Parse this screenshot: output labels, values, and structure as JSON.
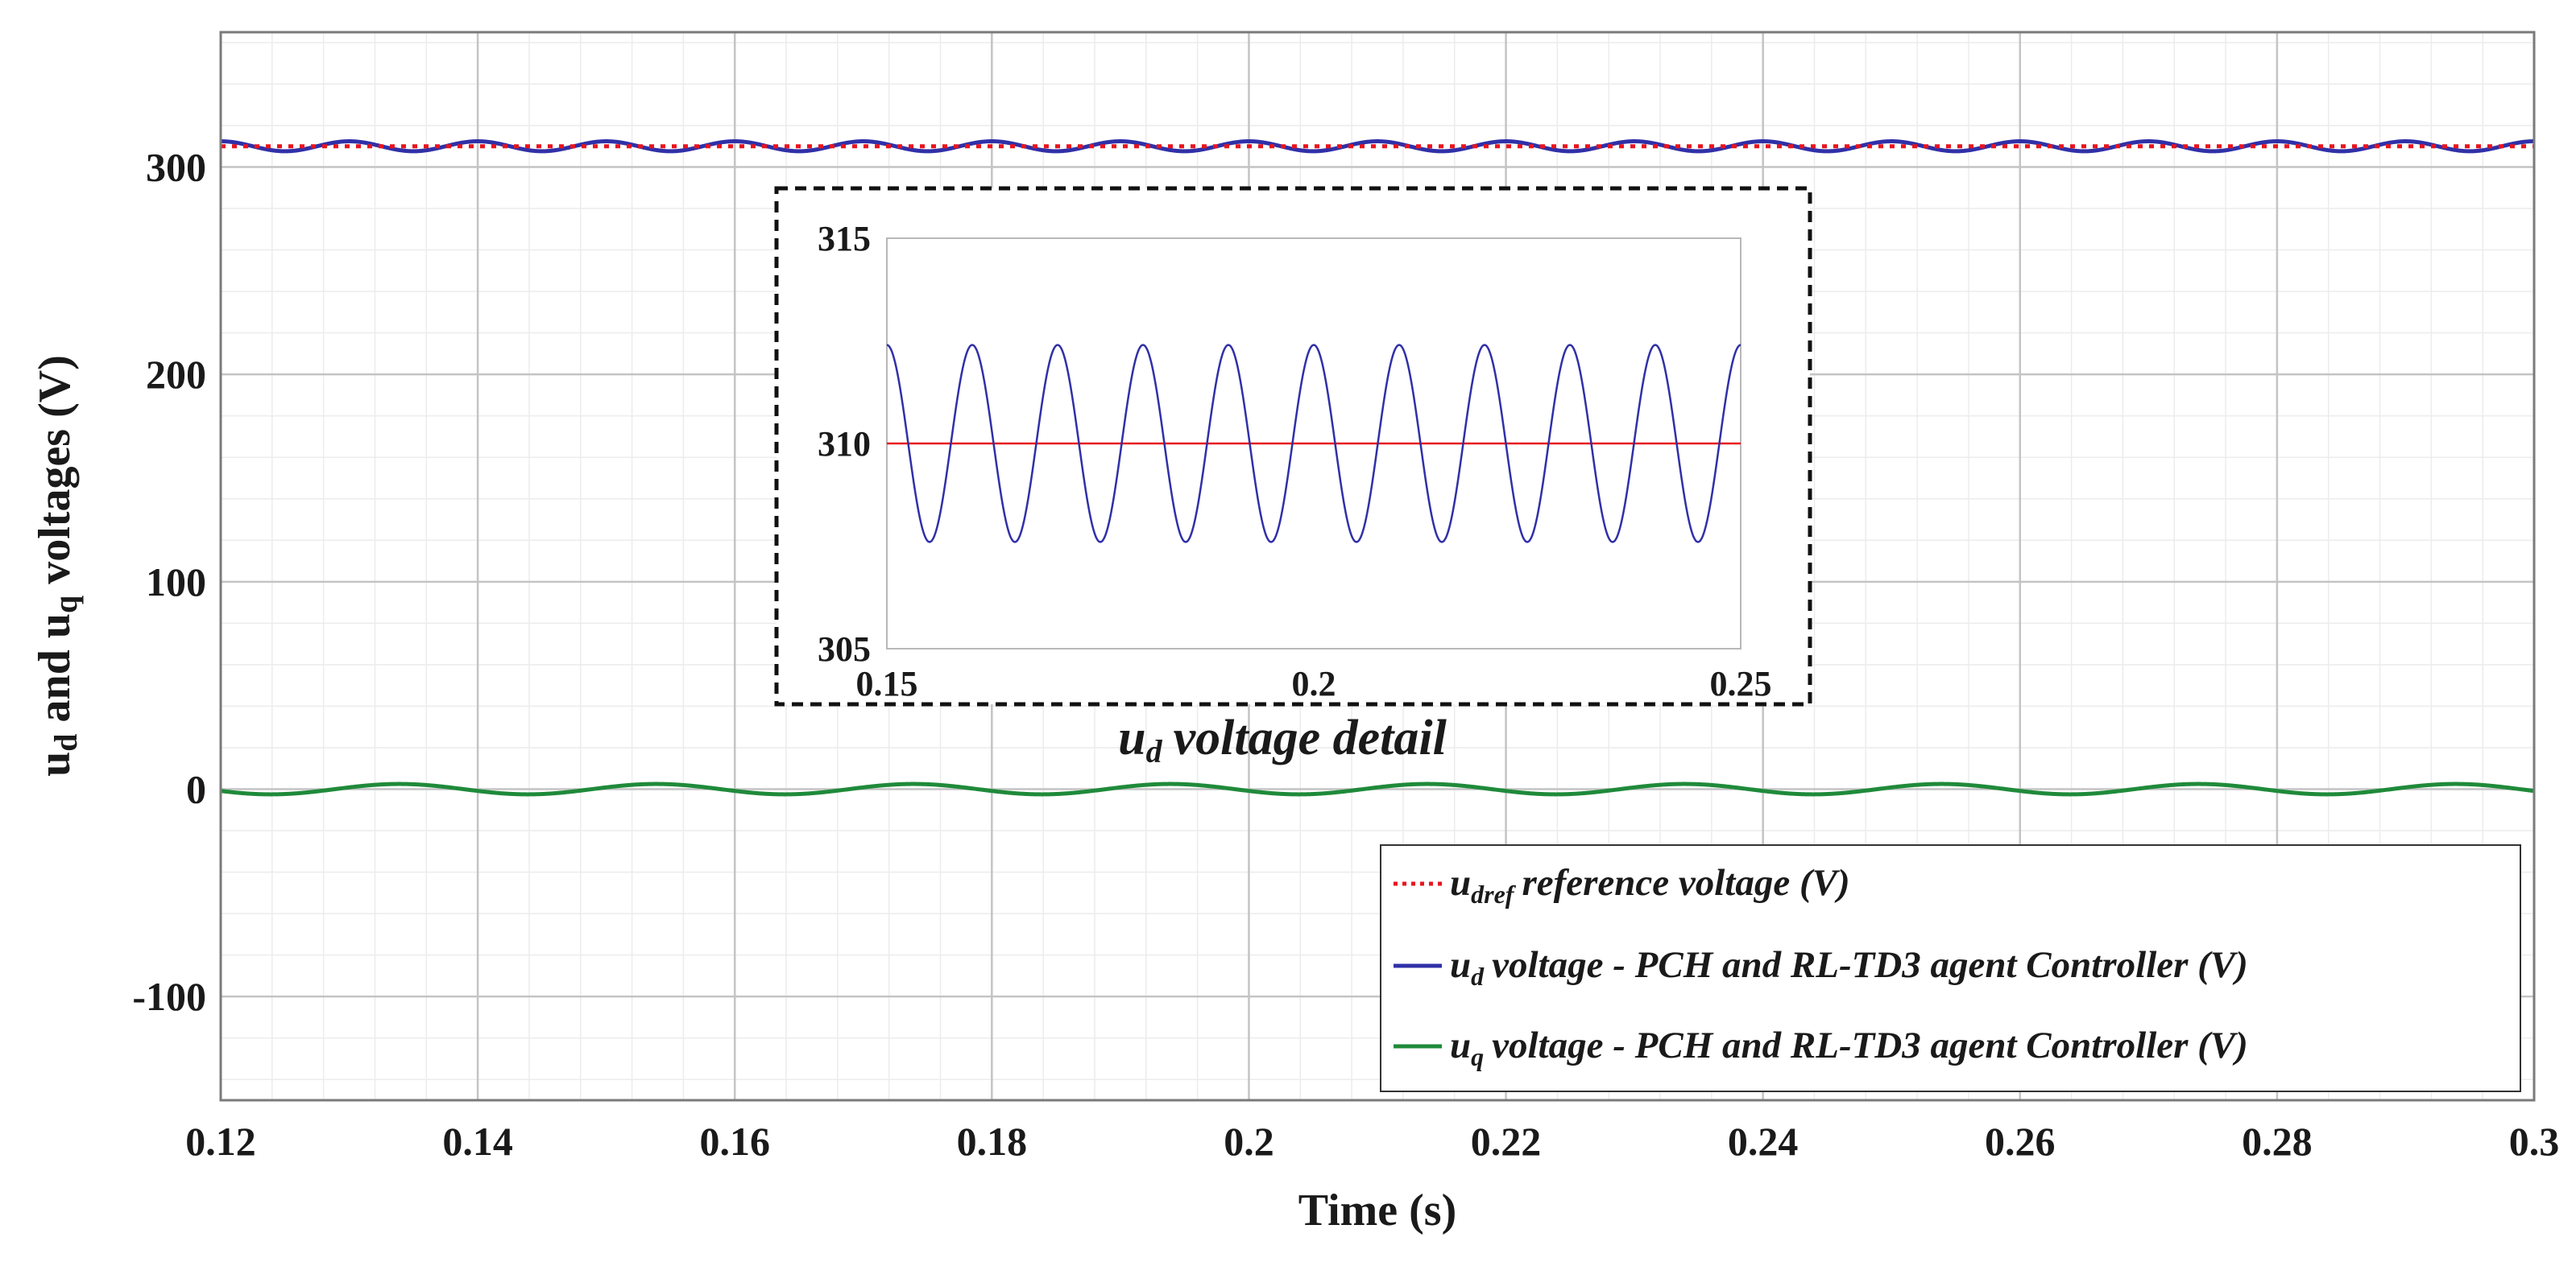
{
  "chart_data": {
    "type": "line",
    "xlabel": "Time (s)",
    "ylabel": {
      "parts": [
        "u",
        "d",
        " and u",
        "q",
        " voltages (V)"
      ]
    },
    "xlim": [
      0.12,
      0.3
    ],
    "ylim": [
      -150,
      365
    ],
    "xticks": [
      0.12,
      0.14,
      0.16,
      0.18,
      0.2,
      0.22,
      0.24,
      0.26,
      0.28,
      0.3
    ],
    "xtick_labels": [
      "0.12",
      "0.14",
      "0.16",
      "0.18",
      "0.2",
      "0.22",
      "0.24",
      "0.26",
      "0.28",
      "0.3"
    ],
    "yticks": [
      -100,
      0,
      100,
      200,
      300
    ],
    "ytick_labels": [
      "-100",
      "0",
      "100",
      "200",
      "300"
    ],
    "grid": true,
    "minor_grid": true,
    "legend_position": "bottom-right",
    "series": [
      {
        "name": "udref_reference",
        "label": {
          "main": "u",
          "sub": "dref",
          "rest": "reference voltage (V)"
        },
        "color": "#e8141e",
        "style": "dotted",
        "kind": "constant",
        "value": 310
      },
      {
        "name": "ud_voltage",
        "label": {
          "main": "u",
          "sub": "d",
          "rest": "voltage - PCH and RL-TD3 agent Controller (V)"
        },
        "color": "#3030a8",
        "style": "solid",
        "kind": "sinusoid",
        "offset": 310,
        "amplitude": 2.4,
        "frequency_hz": 100,
        "phase_deg": 90
      },
      {
        "name": "uq_voltage",
        "label": {
          "main": "u",
          "sub": "q",
          "rest": "voltage - PCH and RL-TD3 agent Controller (V)"
        },
        "color": "#1f8a3a",
        "style": "solid",
        "kind": "sinusoid",
        "offset": 0,
        "amplitude": 2.5,
        "frequency_hz": 50,
        "phase_deg": 200
      }
    ],
    "inset": {
      "caption": {
        "main": "u",
        "sub": "d",
        "rest": "voltage detail"
      },
      "xlim": [
        0.15,
        0.25
      ],
      "ylim": [
        305,
        315
      ],
      "xticks": [
        0.15,
        0.2,
        0.25
      ],
      "xtick_labels": [
        "0.15",
        "0.2",
        "0.25"
      ],
      "yticks": [
        305,
        310,
        315
      ],
      "ytick_labels": [
        "305",
        "310",
        "315"
      ],
      "series": [
        "udref_reference",
        "ud_voltage"
      ]
    }
  }
}
